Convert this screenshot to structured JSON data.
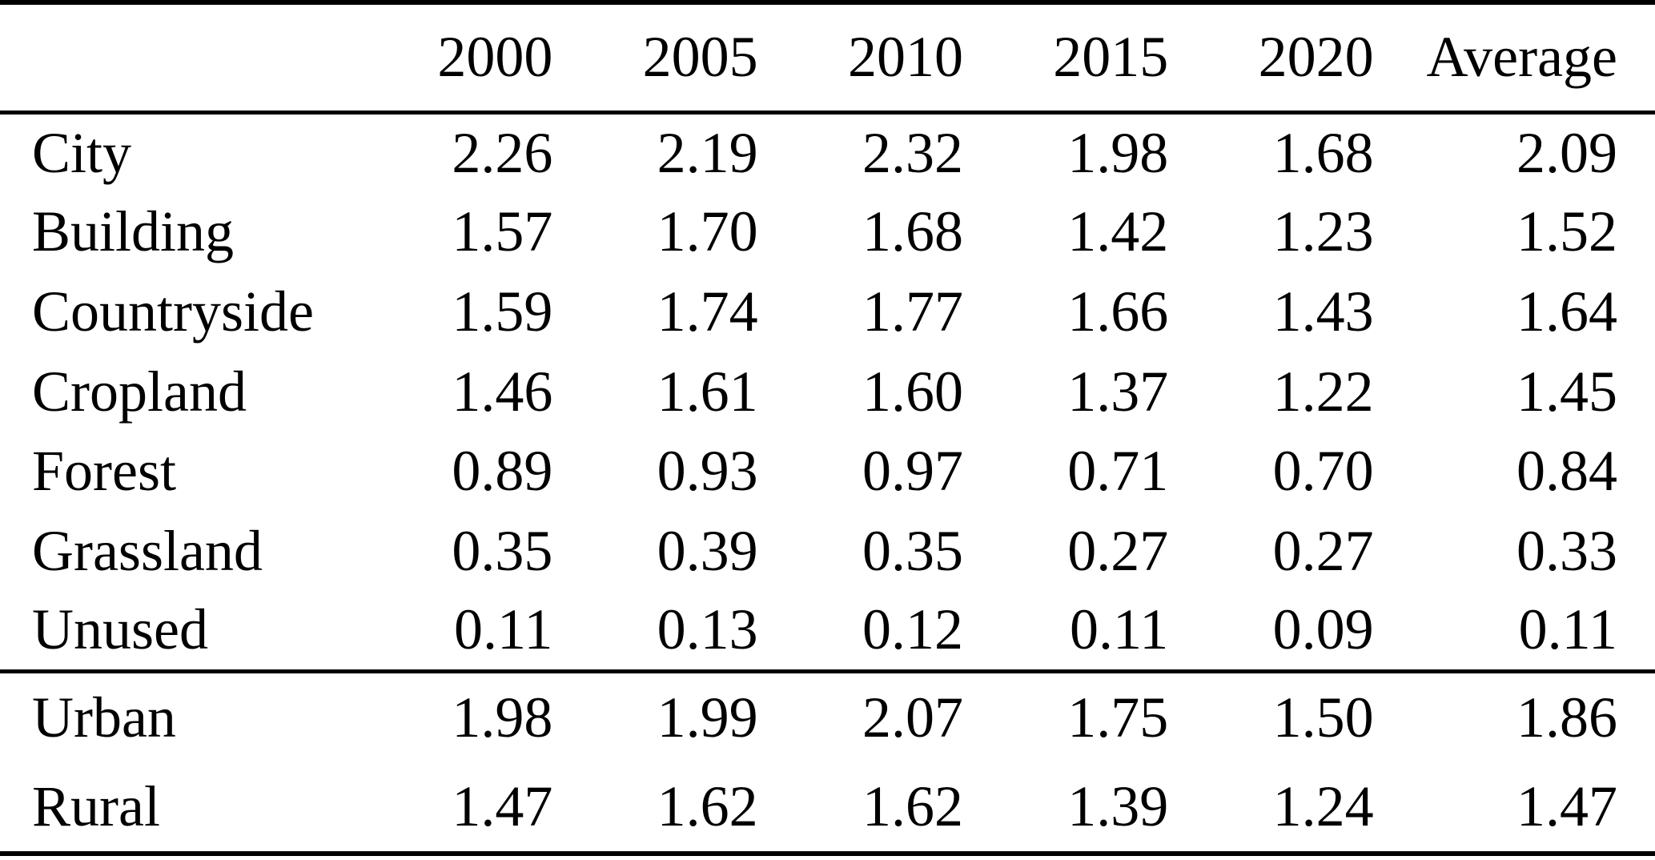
{
  "colors": {
    "text": "#000000",
    "background": "#ffffff",
    "rule": "#000000"
  },
  "table": {
    "columns": [
      "",
      "2000",
      "2005",
      "2010",
      "2015",
      "2020",
      "Average"
    ],
    "sections": [
      {
        "rows": [
          {
            "label": "City",
            "values": [
              "2.26",
              "2.19",
              "2.32",
              "1.98",
              "1.68",
              "2.09"
            ]
          },
          {
            "label": "Building",
            "values": [
              "1.57",
              "1.70",
              "1.68",
              "1.42",
              "1.23",
              "1.52"
            ]
          },
          {
            "label": "Countryside",
            "values": [
              "1.59",
              "1.74",
              "1.77",
              "1.66",
              "1.43",
              "1.64"
            ]
          },
          {
            "label": "Cropland",
            "values": [
              "1.46",
              "1.61",
              "1.60",
              "1.37",
              "1.22",
              "1.45"
            ]
          },
          {
            "label": "Forest",
            "values": [
              "0.89",
              "0.93",
              "0.97",
              "0.71",
              "0.70",
              "0.84"
            ]
          },
          {
            "label": "Grassland",
            "values": [
              "0.35",
              "0.39",
              "0.35",
              "0.27",
              "0.27",
              "0.33"
            ]
          },
          {
            "label": "Unused",
            "values": [
              "0.11",
              "0.13",
              "0.12",
              "0.11",
              "0.09",
              "0.11"
            ]
          }
        ]
      },
      {
        "rows": [
          {
            "label": "Urban",
            "values": [
              "1.98",
              "1.99",
              "2.07",
              "1.75",
              "1.50",
              "1.86"
            ]
          },
          {
            "label": "Rural",
            "values": [
              "1.47",
              "1.62",
              "1.62",
              "1.39",
              "1.24",
              "1.47"
            ]
          }
        ]
      }
    ]
  },
  "chart_data": {
    "type": "table",
    "title": "",
    "categories": [
      "2000",
      "2005",
      "2010",
      "2015",
      "2020",
      "Average"
    ],
    "series": [
      {
        "name": "City",
        "values": [
          2.26,
          2.19,
          2.32,
          1.98,
          1.68,
          2.09
        ]
      },
      {
        "name": "Building",
        "values": [
          1.57,
          1.7,
          1.68,
          1.42,
          1.23,
          1.52
        ]
      },
      {
        "name": "Countryside",
        "values": [
          1.59,
          1.74,
          1.77,
          1.66,
          1.43,
          1.64
        ]
      },
      {
        "name": "Cropland",
        "values": [
          1.46,
          1.61,
          1.6,
          1.37,
          1.22,
          1.45
        ]
      },
      {
        "name": "Forest",
        "values": [
          0.89,
          0.93,
          0.97,
          0.71,
          0.7,
          0.84
        ]
      },
      {
        "name": "Grassland",
        "values": [
          0.35,
          0.39,
          0.35,
          0.27,
          0.27,
          0.33
        ]
      },
      {
        "name": "Unused",
        "values": [
          0.11,
          0.13,
          0.12,
          0.11,
          0.09,
          0.11
        ]
      },
      {
        "name": "Urban",
        "values": [
          1.98,
          1.99,
          2.07,
          1.75,
          1.5,
          1.86
        ]
      },
      {
        "name": "Rural",
        "values": [
          1.47,
          1.62,
          1.62,
          1.39,
          1.24,
          1.47
        ]
      }
    ]
  }
}
